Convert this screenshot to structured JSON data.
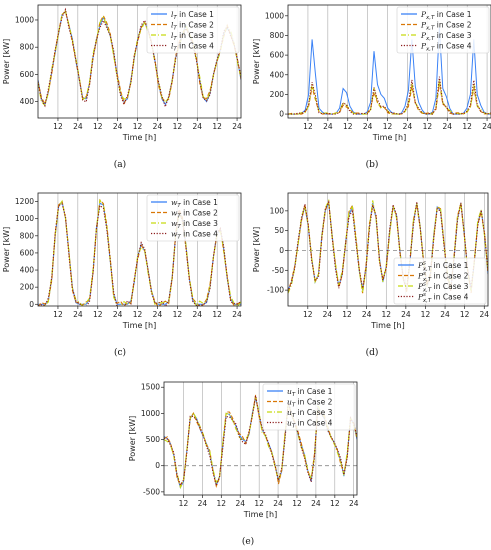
{
  "colors": {
    "case1": "#3b82f6",
    "case2": "#d97706",
    "case3": "#c6d912",
    "case4": "#8b1a1a",
    "vline": "#9a9a9a",
    "zeroline": "#888888",
    "axis": "#222222"
  },
  "chart_data": [
    {
      "id": "a",
      "type": "line",
      "caption": "(a)",
      "xlabel": "Time [h]",
      "ylabel": "Power [kW]",
      "xticklabels": [
        "12",
        "24",
        "12",
        "24",
        "12",
        "24",
        "12",
        "24",
        "12",
        "24"
      ],
      "ylim": [
        280,
        1110
      ],
      "yticks": [
        400,
        600,
        800,
        1000
      ],
      "legend_position": "top-right",
      "series": [
        {
          "name": "l_T in Case 1",
          "label_math": "l",
          "label_sub": "T",
          "label_sup": "",
          "label_text": " in Case 1",
          "style": "solid"
        },
        {
          "name": "l_T in Case 2",
          "label_math": "l",
          "label_sub": "T",
          "label_sup": "",
          "label_text": " in Case 2",
          "style": "dashed"
        },
        {
          "name": "l_T in Case 3",
          "label_math": "l",
          "label_sub": "T",
          "label_sup": "",
          "label_text": " in Case 3",
          "style": "dashdot"
        },
        {
          "name": "l_T in Case 4",
          "label_math": "l",
          "label_sub": "T",
          "label_sup": "",
          "label_text": " in Case 4",
          "style": "dotted"
        }
      ],
      "profile": {
        "kind": "load",
        "start": 560,
        "values": [
          560,
          420,
          380,
          470,
          620,
          760,
          900,
          1040,
          1060,
          960,
          860,
          700,
          560,
          430,
          420,
          540,
          730,
          860,
          960,
          1020,
          960,
          880,
          760,
          600,
          460,
          400,
          420,
          560,
          720,
          860,
          950,
          980,
          930,
          840,
          700,
          540,
          420,
          380,
          430,
          560,
          720,
          820,
          900,
          960,
          900,
          820,
          720,
          560,
          430,
          400,
          460,
          600,
          700,
          780,
          900,
          940,
          900,
          820,
          700,
          560
        ]
      }
    },
    {
      "id": "b",
      "type": "line",
      "caption": "(b)",
      "xlabel": "Time [h]",
      "ylabel": "Power [kW]",
      "xticklabels": [
        "12",
        "24",
        "12",
        "24",
        "12",
        "24",
        "12",
        "24",
        "12",
        "24"
      ],
      "ylim": [
        -40,
        1110
      ],
      "yticks": [
        0,
        200,
        400,
        600,
        800,
        1000
      ],
      "legend_position": "top-right",
      "series": [
        {
          "name": "P_x,T in Case 1",
          "label_math": "P",
          "label_sub": "x,T",
          "label_sup": "",
          "label_text": " in Case 1",
          "style": "solid"
        },
        {
          "name": "P_x,T in Case 2",
          "label_math": "P",
          "label_sub": "x,T",
          "label_sup": "",
          "label_text": " in Case 2",
          "style": "dashed"
        },
        {
          "name": "P_x,T in Case 3",
          "label_math": "P",
          "label_sub": "x,T",
          "label_sup": "",
          "label_text": " in Case 3",
          "style": "dashdot"
        },
        {
          "name": "P_x,T in Case 4",
          "label_math": "P",
          "label_sub": "x,T",
          "label_sup": "",
          "label_text": " in Case 4",
          "style": "dotted"
        }
      ],
      "profile": {
        "kind": "ev",
        "values": [
          0,
          0,
          0,
          0,
          10,
          40,
          200,
          760,
          400,
          60,
          20,
          0,
          0,
          0,
          10,
          60,
          260,
          220,
          80,
          20,
          0,
          0,
          0,
          20,
          120,
          640,
          300,
          200,
          160,
          60,
          20,
          0,
          0,
          10,
          80,
          240,
          760,
          280,
          120,
          40,
          0,
          0,
          20,
          160,
          880,
          260,
          180,
          60,
          0,
          0,
          0,
          10,
          60,
          200,
          760,
          200,
          90,
          20,
          0,
          0
        ]
      }
    },
    {
      "id": "c",
      "type": "line",
      "caption": "(c)",
      "xlabel": "Time [h]",
      "ylabel": "Power [kW]",
      "xticklabels": [
        "12",
        "24",
        "12",
        "24",
        "12",
        "24",
        "12",
        "24",
        "12",
        "24"
      ],
      "ylim": [
        -20,
        1300
      ],
      "yticks": [
        0,
        200,
        400,
        600,
        800,
        1000,
        1200
      ],
      "legend_position": "top-right",
      "series": [
        {
          "name": "w_T in Case 1",
          "label_math": "w",
          "label_sub": "T",
          "label_sup": "",
          "label_text": " in Case 1",
          "style": "solid"
        },
        {
          "name": "w_T in Case 2",
          "label_math": "w",
          "label_sub": "T",
          "label_sup": "",
          "label_text": " in Case 2",
          "style": "dashed"
        },
        {
          "name": "w_T in Case 3",
          "label_math": "w",
          "label_sub": "T",
          "label_sup": "",
          "label_text": " in Case 3",
          "style": "dashdot"
        },
        {
          "name": "w_T in Case 4",
          "label_math": "w",
          "label_sub": "T",
          "label_sup": "",
          "label_text": " in Case 4",
          "style": "dotted"
        }
      ],
      "profile": {
        "kind": "pv",
        "values": [
          0,
          0,
          0,
          40,
          300,
          800,
          1140,
          1200,
          1000,
          600,
          200,
          20,
          0,
          0,
          0,
          60,
          380,
          900,
          1180,
          1160,
          900,
          500,
          120,
          0,
          0,
          0,
          0,
          40,
          260,
          560,
          700,
          620,
          400,
          160,
          20,
          0,
          0,
          0,
          30,
          320,
          800,
          1080,
          1000,
          700,
          300,
          40,
          0,
          0,
          0,
          20,
          200,
          560,
          820,
          880,
          640,
          300,
          60,
          0,
          0,
          0
        ]
      }
    },
    {
      "id": "d",
      "type": "line",
      "caption": "(d)",
      "xlabel": "Time [h]",
      "ylabel": "Power [kW]",
      "xticklabels": [
        "12",
        "24",
        "12",
        "24",
        "12",
        "24",
        "12",
        "24",
        "12",
        "24"
      ],
      "ylim": [
        -140,
        145
      ],
      "yticks": [
        -100,
        -50,
        0,
        50,
        100
      ],
      "legend_position": "lower-right",
      "series": [
        {
          "name": "P_x,T^s in Case 1",
          "label_math": "P",
          "label_sub": "x,T",
          "label_sup": "s",
          "label_text": " in Case 1",
          "style": "solid"
        },
        {
          "name": "P_x,T^s in Case 2",
          "label_math": "P",
          "label_sub": "x,T",
          "label_sup": "s",
          "label_text": " in Case 2",
          "style": "dashed"
        },
        {
          "name": "P_x,T^s in Case 3",
          "label_math": "P",
          "label_sub": "x,T",
          "label_sup": "s",
          "label_text": " in Case 3",
          "style": "dashdot"
        },
        {
          "name": "P_x,T^s in Case 4",
          "label_math": "P",
          "label_sub": "x,T",
          "label_sup": "s",
          "label_text": " in Case 4",
          "style": "dotted"
        }
      ],
      "profile": {
        "kind": "storage",
        "values": [
          -100,
          -80,
          -40,
          20,
          80,
          110,
          60,
          -20,
          -80,
          -60,
          40,
          100,
          120,
          40,
          -40,
          -90,
          -60,
          20,
          90,
          110,
          30,
          -50,
          -100,
          -40,
          60,
          120,
          80,
          -20,
          -80,
          -40,
          50,
          110,
          90,
          0,
          -70,
          -100,
          -30,
          70,
          120,
          60,
          -30,
          -90,
          -60,
          40,
          110,
          100,
          20,
          -60,
          -100,
          -20,
          80,
          120,
          40,
          -50,
          -100,
          -30,
          70,
          100,
          40,
          -60
        ]
      }
    },
    {
      "id": "e",
      "type": "line",
      "caption": "(e)",
      "xlabel": "Time [h]",
      "ylabel": "Power [kW]",
      "xticklabels": [
        "12",
        "24",
        "12",
        "24",
        "12",
        "24",
        "12",
        "24",
        "12",
        "24"
      ],
      "ylim": [
        -560,
        1600
      ],
      "yticks": [
        -500,
        0,
        500,
        1000,
        1500
      ],
      "legend_position": "top-right",
      "series": [
        {
          "name": "u_T in Case 1",
          "label_math": "u",
          "label_sub": "T",
          "label_sup": "",
          "label_text": " in Case 1",
          "style": "solid"
        },
        {
          "name": "u_T in Case 2",
          "label_math": "u",
          "label_sub": "T",
          "label_sup": "",
          "label_text": " in Case 2",
          "style": "dashed"
        },
        {
          "name": "u_T in Case 3",
          "label_math": "u",
          "label_sub": "T",
          "label_sup": "",
          "label_text": " in Case 3",
          "style": "dashdot"
        },
        {
          "name": "u_T in Case 4",
          "label_math": "u",
          "label_sub": "T",
          "label_sup": "",
          "label_text": " in Case 4",
          "style": "dotted"
        }
      ],
      "profile": {
        "kind": "grid",
        "values": [
          560,
          520,
          420,
          200,
          -200,
          -420,
          -300,
          300,
          900,
          1000,
          900,
          700,
          560,
          420,
          240,
          -100,
          -380,
          -200,
          400,
          1000,
          980,
          860,
          760,
          600,
          500,
          460,
          600,
          1000,
          1300,
          1000,
          700,
          560,
          420,
          260,
          0,
          -300,
          -100,
          560,
          1200,
          1000,
          800,
          600,
          400,
          200,
          -100,
          -300,
          200,
          1100,
          1000,
          900,
          700,
          560,
          440,
          300,
          100,
          -200,
          200,
          900,
          800,
          500
        ]
      }
    }
  ]
}
